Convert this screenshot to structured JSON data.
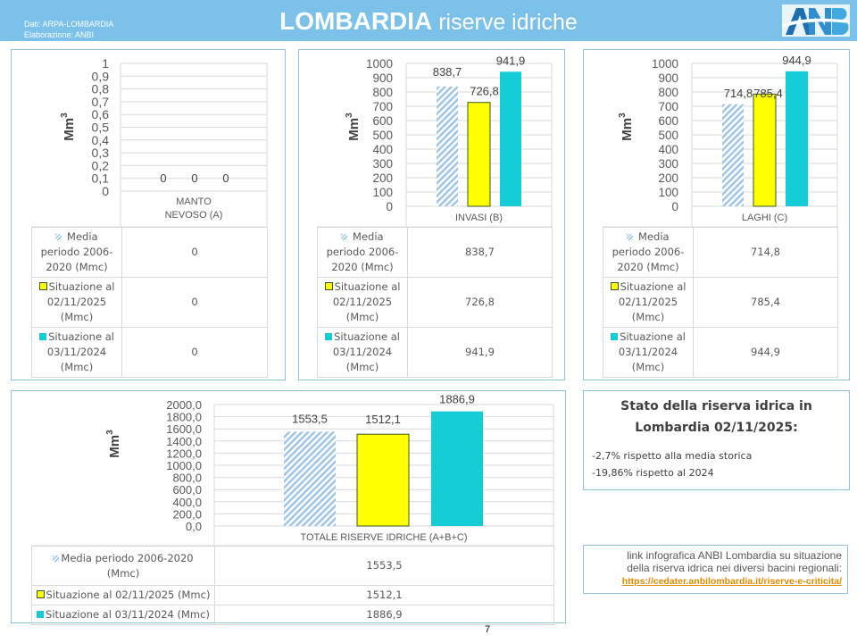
{
  "header": {
    "source_line1": "Dati: ARPA-LOMBARDIA",
    "source_line2": "Elaborazione: ANBI",
    "title_bold": "LOMBARDIA",
    "title_light": " riserve idriche",
    "logo_text": "ANBI",
    "background_color": "#7cc1e9"
  },
  "series": [
    {
      "name": "Media periodo 2006-2020 (Mmc)",
      "key": "hatch",
      "color": "#9dc3e6"
    },
    {
      "name": "Situazione al 02/11/2025 (Mmc)",
      "key": "yellow",
      "color": "#ffff00"
    },
    {
      "name": "Situazione al 03/11/2024 (Mmc)",
      "key": "cyan",
      "color": "#13ccd6"
    }
  ],
  "table_labels": {
    "media_l1": "Media",
    "media_l2": "periodo 2006-",
    "media_l3": "2020 (Mmc)",
    "sit25_l1": "Situazione al",
    "sit25_l2": "02/11/2025",
    "sit25_l3": "(Mmc)",
    "sit24_l1": "Situazione al",
    "sit24_l2": "03/11/2024",
    "sit24_l3": "(Mmc)",
    "media_wide_l1": "Media periodo 2006-2020",
    "media_wide_l2": "(Mmc)",
    "sit25_wide": "Situazione al 02/11/2025 (Mmc)",
    "sit24_wide": "Situazione al 03/11/2024 (Mmc)"
  },
  "chart_data": [
    {
      "type": "bar",
      "title": "",
      "categories": [
        "MANTO NEVOSO (A)"
      ],
      "category_lines": [
        "MANTO",
        "NEVOSO (A)"
      ],
      "ylabel": "Mm³",
      "ylim": [
        0,
        1
      ],
      "yticks": [
        "0",
        "0,1",
        "0,2",
        "0,3",
        "0,4",
        "0,5",
        "0,6",
        "0,7",
        "0,8",
        "0,9",
        "1"
      ],
      "series": [
        {
          "name": "Media periodo 2006-2020 (Mmc)",
          "values": [
            0
          ],
          "label": "0"
        },
        {
          "name": "Situazione al 02/11/2025 (Mmc)",
          "values": [
            0
          ],
          "label": "0"
        },
        {
          "name": "Situazione al 03/11/2024 (Mmc)",
          "values": [
            0
          ],
          "label": "0"
        }
      ],
      "grid": true,
      "legend": "data-table-below"
    },
    {
      "type": "bar",
      "title": "",
      "categories": [
        "INVASI (B)"
      ],
      "category_lines": [
        "INVASI (B)"
      ],
      "ylabel": "Mm³",
      "ylim": [
        0,
        1000
      ],
      "yticks": [
        "0",
        "100",
        "200",
        "300",
        "400",
        "500",
        "600",
        "700",
        "800",
        "900",
        "1000"
      ],
      "series": [
        {
          "name": "Media periodo 2006-2020 (Mmc)",
          "values": [
            838.7
          ],
          "label": "838,7"
        },
        {
          "name": "Situazione al 02/11/2025 (Mmc)",
          "values": [
            726.8
          ],
          "label": "726,8"
        },
        {
          "name": "Situazione al 03/11/2024 (Mmc)",
          "values": [
            941.9
          ],
          "label": "941,9"
        }
      ],
      "grid": true,
      "legend": "data-table-below"
    },
    {
      "type": "bar",
      "title": "",
      "categories": [
        "LAGHI (C)"
      ],
      "category_lines": [
        "LAGHI (C)"
      ],
      "ylabel": "Mm³",
      "ylim": [
        0,
        1000
      ],
      "yticks": [
        "0",
        "100",
        "200",
        "300",
        "400",
        "500",
        "600",
        "700",
        "800",
        "900",
        "1000"
      ],
      "series": [
        {
          "name": "Media periodo 2006-2020 (Mmc)",
          "values": [
            714.8
          ],
          "label": "714,8"
        },
        {
          "name": "Situazione al 02/11/2025 (Mmc)",
          "values": [
            785.4
          ],
          "label": "785,4"
        },
        {
          "name": "Situazione al 03/11/2024 (Mmc)",
          "values": [
            944.9
          ],
          "label": "944,9"
        }
      ],
      "grid": true,
      "legend": "data-table-below"
    },
    {
      "type": "bar",
      "title": "",
      "categories": [
        "TOTALE RISERVE IDRICHE (A+B+C)"
      ],
      "category_lines": [
        "TOTALE RISERVE IDRICHE (A+B+C)"
      ],
      "ylabel": "Mm³",
      "ylim": [
        0,
        2000
      ],
      "yticks": [
        "0,0",
        "200,0",
        "400,0",
        "600,0",
        "800,0",
        "1000,0",
        "1200,0",
        "1400,0",
        "1600,0",
        "1800,0",
        "2000,0"
      ],
      "series": [
        {
          "name": "Media periodo 2006-2020 (Mmc)",
          "values": [
            1553.5
          ],
          "label": "1553,5"
        },
        {
          "name": "Situazione al 02/11/2025 (Mmc)",
          "values": [
            1512.1
          ],
          "label": "1512,1"
        },
        {
          "name": "Situazione al 03/11/2024 (Mmc)",
          "values": [
            1886.9
          ],
          "label": "1886,9"
        }
      ],
      "grid": true,
      "legend": "data-table-below"
    }
  ],
  "summary": {
    "heading_l1": "Stato della riserva idrica in",
    "heading_l2": "Lombardia 02/11/2025:",
    "line1": "-2,7% rispetto alla media storica",
    "line2": "-19,86% rispetto al 2024"
  },
  "link_box": {
    "text_l1": "link infografica ANBI Lombardia su situazione",
    "text_l2": "della riserva idrica nei diversi bacini regionali:",
    "url_text": "https://cedater.anbilombardia.it/riserve-e-criticita/"
  },
  "page_number": "7"
}
